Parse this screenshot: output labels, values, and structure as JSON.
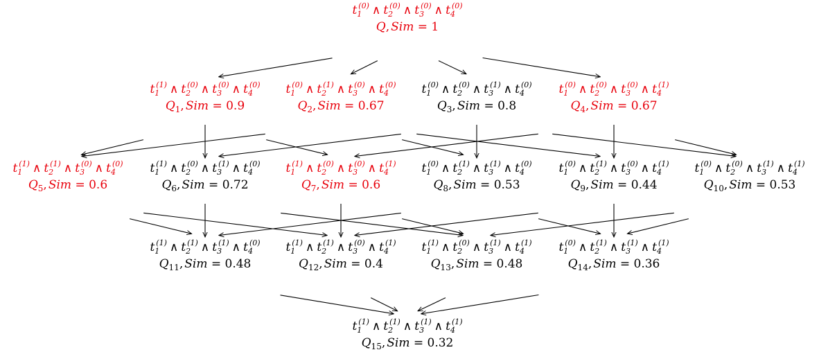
{
  "colors": {
    "highlight": "#e8000b",
    "normal": "#000000"
  },
  "sim_label": "Sim =",
  "nodes": [
    {
      "id": "Q",
      "name": "Q",
      "levels": [
        0,
        0,
        0,
        0
      ],
      "sim": "1",
      "highlight": true
    },
    {
      "id": "Q1",
      "name": "Q",
      "sub": "1",
      "levels": [
        1,
        0,
        0,
        0
      ],
      "sim": "0.9",
      "highlight": true
    },
    {
      "id": "Q2",
      "name": "Q",
      "sub": "2",
      "levels": [
        0,
        1,
        0,
        0
      ],
      "sim": "0.67",
      "highlight": true
    },
    {
      "id": "Q3",
      "name": "Q",
      "sub": "3",
      "levels": [
        0,
        0,
        1,
        0
      ],
      "sim": "0.8",
      "highlight": false
    },
    {
      "id": "Q4",
      "name": "Q",
      "sub": "4",
      "levels": [
        0,
        0,
        0,
        1
      ],
      "sim": "0.67",
      "highlight": true
    },
    {
      "id": "Q5",
      "name": "Q",
      "sub": "5",
      "levels": [
        1,
        1,
        0,
        0
      ],
      "sim": "0.6",
      "highlight": true
    },
    {
      "id": "Q6",
      "name": "Q",
      "sub": "6",
      "levels": [
        1,
        0,
        1,
        0
      ],
      "sim": "0.72",
      "highlight": false
    },
    {
      "id": "Q7",
      "name": "Q",
      "sub": "7",
      "levels": [
        1,
        0,
        0,
        1
      ],
      "sim": "0.6",
      "highlight": true
    },
    {
      "id": "Q8",
      "name": "Q",
      "sub": "8",
      "levels": [
        0,
        1,
        1,
        0
      ],
      "sim": "0.53",
      "highlight": false
    },
    {
      "id": "Q9",
      "name": "Q",
      "sub": "9",
      "levels": [
        0,
        1,
        0,
        1
      ],
      "sim": "0.44",
      "highlight": false
    },
    {
      "id": "Q10",
      "name": "Q",
      "sub": "10",
      "levels": [
        0,
        0,
        1,
        1
      ],
      "sim": "0.53",
      "highlight": false
    },
    {
      "id": "Q11",
      "name": "Q",
      "sub": "11",
      "levels": [
        1,
        1,
        1,
        0
      ],
      "sim": "0.48",
      "highlight": false
    },
    {
      "id": "Q12",
      "name": "Q",
      "sub": "12",
      "levels": [
        1,
        1,
        0,
        1
      ],
      "sim": "0.4",
      "highlight": false
    },
    {
      "id": "Q13",
      "name": "Q",
      "sub": "13",
      "levels": [
        1,
        0,
        1,
        1
      ],
      "sim": "0.48",
      "highlight": false
    },
    {
      "id": "Q14",
      "name": "Q",
      "sub": "14",
      "levels": [
        0,
        1,
        1,
        1
      ],
      "sim": "0.36",
      "highlight": false
    },
    {
      "id": "Q15",
      "name": "Q",
      "sub": "15",
      "levels": [
        1,
        1,
        1,
        1
      ],
      "sim": "0.32",
      "highlight": false
    }
  ],
  "edges": [
    [
      "Q",
      "Q1"
    ],
    [
      "Q",
      "Q2"
    ],
    [
      "Q",
      "Q3"
    ],
    [
      "Q",
      "Q4"
    ],
    [
      "Q1",
      "Q5"
    ],
    [
      "Q1",
      "Q6"
    ],
    [
      "Q1",
      "Q7"
    ],
    [
      "Q2",
      "Q5"
    ],
    [
      "Q2",
      "Q8"
    ],
    [
      "Q2",
      "Q9"
    ],
    [
      "Q3",
      "Q6"
    ],
    [
      "Q3",
      "Q8"
    ],
    [
      "Q3",
      "Q10"
    ],
    [
      "Q4",
      "Q7"
    ],
    [
      "Q4",
      "Q9"
    ],
    [
      "Q4",
      "Q10"
    ],
    [
      "Q5",
      "Q11"
    ],
    [
      "Q5",
      "Q12"
    ],
    [
      "Q6",
      "Q11"
    ],
    [
      "Q6",
      "Q13"
    ],
    [
      "Q7",
      "Q12"
    ],
    [
      "Q7",
      "Q13"
    ],
    [
      "Q8",
      "Q11"
    ],
    [
      "Q8",
      "Q14"
    ],
    [
      "Q9",
      "Q12"
    ],
    [
      "Q9",
      "Q14"
    ],
    [
      "Q10",
      "Q13"
    ],
    [
      "Q10",
      "Q14"
    ],
    [
      "Q11",
      "Q15"
    ],
    [
      "Q12",
      "Q15"
    ],
    [
      "Q13",
      "Q15"
    ],
    [
      "Q14",
      "Q15"
    ]
  ]
}
